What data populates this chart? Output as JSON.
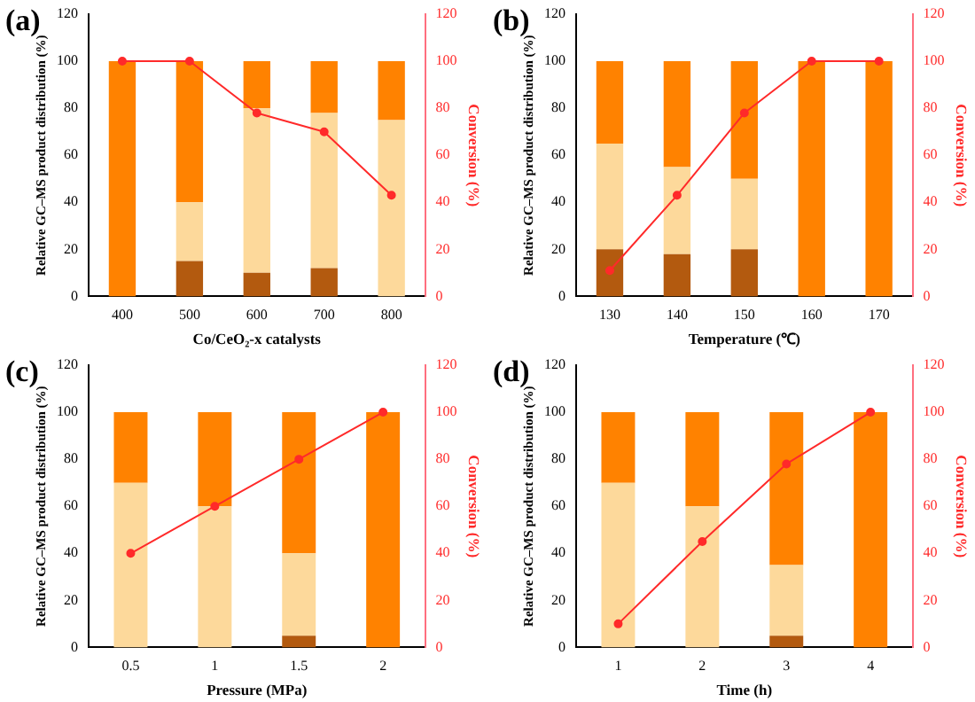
{
  "chart_data": [
    {
      "type": "bar",
      "title": "(a)",
      "stacked": true,
      "xlabel": "Co/CeO₂-x catalysts",
      "ylabel": "Relative GC–MS product distribution (%)",
      "y2label": "Conversion (%)",
      "categories": [
        "400",
        "500",
        "600",
        "700",
        "800"
      ],
      "ylim": [
        0,
        120
      ],
      "yticks": [
        0,
        20,
        40,
        60,
        80,
        100,
        120
      ],
      "y2lim": [
        0,
        120
      ],
      "y2ticks": [
        0,
        20,
        40,
        60,
        80,
        100,
        120
      ],
      "marker": "circle",
      "series": [
        {
          "color": "#b35a0f",
          "values": [
            0,
            15,
            10,
            12,
            0
          ]
        },
        {
          "color": "#fdd99b",
          "values": [
            0,
            25,
            70,
            66,
            75
          ]
        },
        {
          "color": "#ff8200",
          "values": [
            100,
            60,
            20,
            22,
            25
          ]
        },
        {
          "type": "line",
          "axis": "y2",
          "color": "#ff2a2a",
          "values": [
            100,
            100,
            78,
            70,
            43
          ]
        }
      ]
    },
    {
      "type": "bar",
      "title": "(b)",
      "stacked": true,
      "xlabel": "Temperature (℃)",
      "ylabel": "Relative GC–MS product distribution (%)",
      "y2label": "Conversion (%)",
      "categories": [
        "130",
        "140",
        "150",
        "160",
        "170"
      ],
      "ylim": [
        0,
        120
      ],
      "yticks": [
        0,
        20,
        40,
        60,
        80,
        100,
        120
      ],
      "y2lim": [
        0,
        120
      ],
      "y2ticks": [
        0,
        20,
        40,
        60,
        80,
        100,
        120
      ],
      "marker": "circle",
      "series": [
        {
          "color": "#b35a0f",
          "values": [
            20,
            18,
            20,
            0,
            0
          ]
        },
        {
          "color": "#fdd99b",
          "values": [
            45,
            37,
            30,
            0,
            0
          ]
        },
        {
          "color": "#ff8200",
          "values": [
            35,
            45,
            50,
            100,
            100
          ]
        },
        {
          "type": "line",
          "axis": "y2",
          "color": "#ff2a2a",
          "values": [
            11,
            43,
            78,
            100,
            100
          ]
        }
      ]
    },
    {
      "type": "bar",
      "title": "(c)",
      "stacked": true,
      "xlabel": "Pressure (MPa)",
      "ylabel": "Relative GC–MS product distribution (%)",
      "y2label": "Conversion (%)",
      "categories": [
        "0.5",
        "1",
        "1.5",
        "2"
      ],
      "ylim": [
        0,
        120
      ],
      "yticks": [
        0,
        20,
        40,
        60,
        80,
        100,
        120
      ],
      "y2lim": [
        0,
        120
      ],
      "y2ticks": [
        0,
        20,
        40,
        60,
        80,
        100,
        120
      ],
      "marker": "circle",
      "series": [
        {
          "color": "#b35a0f",
          "values": [
            0,
            0,
            5,
            0
          ]
        },
        {
          "color": "#fdd99b",
          "values": [
            70,
            60,
            35,
            0
          ]
        },
        {
          "color": "#ff8200",
          "values": [
            30,
            40,
            60,
            100
          ]
        },
        {
          "type": "line",
          "axis": "y2",
          "color": "#ff2a2a",
          "values": [
            40,
            60,
            80,
            100
          ]
        }
      ]
    },
    {
      "type": "bar",
      "title": "(d)",
      "stacked": true,
      "xlabel": "Time (h)",
      "ylabel": "Relative GC–MS product distribution (%)",
      "y2label": "Conversion (%)",
      "categories": [
        "1",
        "2",
        "3",
        "4"
      ],
      "ylim": [
        0,
        120
      ],
      "yticks": [
        0,
        20,
        40,
        60,
        80,
        100,
        120
      ],
      "y2lim": [
        0,
        120
      ],
      "y2ticks": [
        0,
        20,
        40,
        60,
        80,
        100,
        120
      ],
      "marker": "circle",
      "series": [
        {
          "color": "#b35a0f",
          "values": [
            0,
            0,
            5,
            0
          ]
        },
        {
          "color": "#fdd99b",
          "values": [
            70,
            60,
            30,
            0
          ]
        },
        {
          "color": "#ff8200",
          "values": [
            30,
            40,
            65,
            100
          ]
        },
        {
          "type": "line",
          "axis": "y2",
          "color": "#ff2a2a",
          "values": [
            10,
            45,
            78,
            100
          ]
        }
      ]
    }
  ]
}
